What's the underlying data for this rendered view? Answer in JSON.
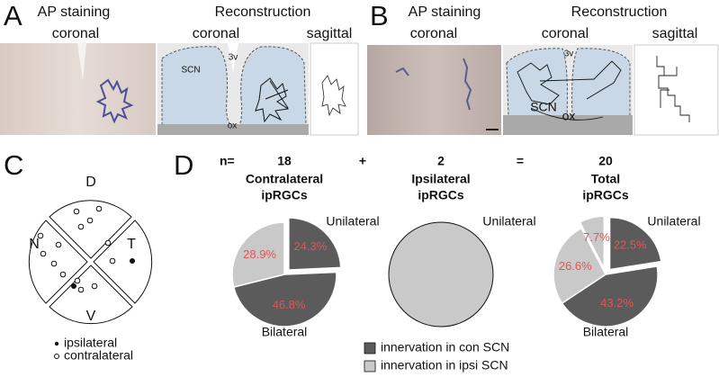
{
  "panel_a": {
    "letter": "A",
    "staining": "AP staining",
    "staining_plane": "coronal",
    "reconstruction": "Reconstruction",
    "coronal": "coronal",
    "sagittal": "sagittal",
    "scn": "SCN",
    "third_ventricle": "3v",
    "optic_chiasm": "ox"
  },
  "panel_b": {
    "letter": "B",
    "staining": "AP staining",
    "staining_plane": "coronal",
    "reconstruction": "Reconstruction",
    "coronal": "coronal",
    "sagittal": "sagittal",
    "scn": "SCN",
    "third_ventricle": "3v",
    "optic_chiasm": "ox"
  },
  "panel_c": {
    "letter": "C",
    "dorsal": "D",
    "nasal": "N",
    "temporal": "T",
    "ventral": "V",
    "legend": [
      "ipsilateral",
      "contralateral"
    ]
  },
  "panel_d": {
    "letter": "D",
    "n_label": "n=",
    "plus": "+",
    "equals": "=",
    "legend": [
      {
        "name": "innervation in con SCN",
        "color": "#5b5b5b"
      },
      {
        "name": "innervation in ipsi SCN",
        "color": "#c9c9c9"
      }
    ]
  },
  "chart_data": [
    {
      "type": "pie",
      "n": 18,
      "title_lines": [
        "Contralateral",
        "ipRGCs"
      ],
      "top_label": "Unilateral",
      "bottom_label": "Bilateral",
      "values": [
        24.3,
        46.8,
        28.9
      ],
      "value_labels": [
        "24.3%",
        "46.8%",
        "28.9%"
      ],
      "colors": [
        "#5b5b5b",
        "#5b5b5b",
        "#c9c9c9"
      ],
      "exploded": [
        0
      ]
    },
    {
      "type": "pie",
      "n": 2,
      "title_lines": [
        "Ipsilateral",
        "ipRGCs"
      ],
      "top_label": "Unilateral",
      "values": [
        100
      ],
      "colors": [
        "#c9c9c9"
      ],
      "exploded": []
    },
    {
      "type": "pie",
      "n": 20,
      "title_lines": [
        "Total",
        "ipRGCs"
      ],
      "top_label": "Unilateral",
      "bottom_label": "Bilateral",
      "values": [
        22.5,
        43.2,
        26.6,
        7.7
      ],
      "value_labels": [
        "22.5%",
        "43.2%",
        "26.6%",
        "7.7%"
      ],
      "colors": [
        "#5b5b5b",
        "#5b5b5b",
        "#c9c9c9",
        "#c9c9c9"
      ],
      "exploded": [
        0,
        3
      ]
    }
  ]
}
